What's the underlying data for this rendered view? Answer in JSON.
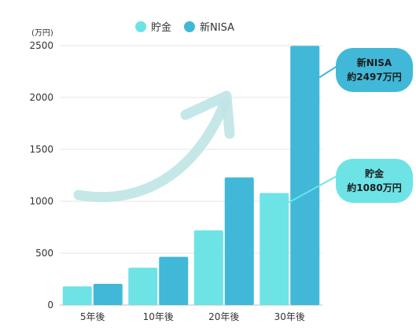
{
  "chart_data": {
    "type": "bar",
    "categories": [
      "5年後",
      "10年後",
      "20年後",
      "30年後"
    ],
    "series": [
      {
        "name": "貯金",
        "values": [
          180,
          360,
          720,
          1080
        ],
        "color": "#6de3e6"
      },
      {
        "name": "新NISA",
        "values": [
          205,
          465,
          1230,
          2497
        ],
        "color": "#41b8d8"
      }
    ],
    "unit_label": "(万円)",
    "yticks": [
      0,
      500,
      1000,
      1500,
      2000,
      2500
    ],
    "ylim": [
      0,
      2500
    ],
    "grid": true,
    "legend_position": "top-center",
    "annotations": [
      {
        "series": "新NISA",
        "line1": "新NISA",
        "line2": "約2497万円"
      },
      {
        "series": "貯金",
        "line1": "貯金",
        "line2": "約1080万円"
      }
    ],
    "arrow_color": "#bfe4e6"
  }
}
